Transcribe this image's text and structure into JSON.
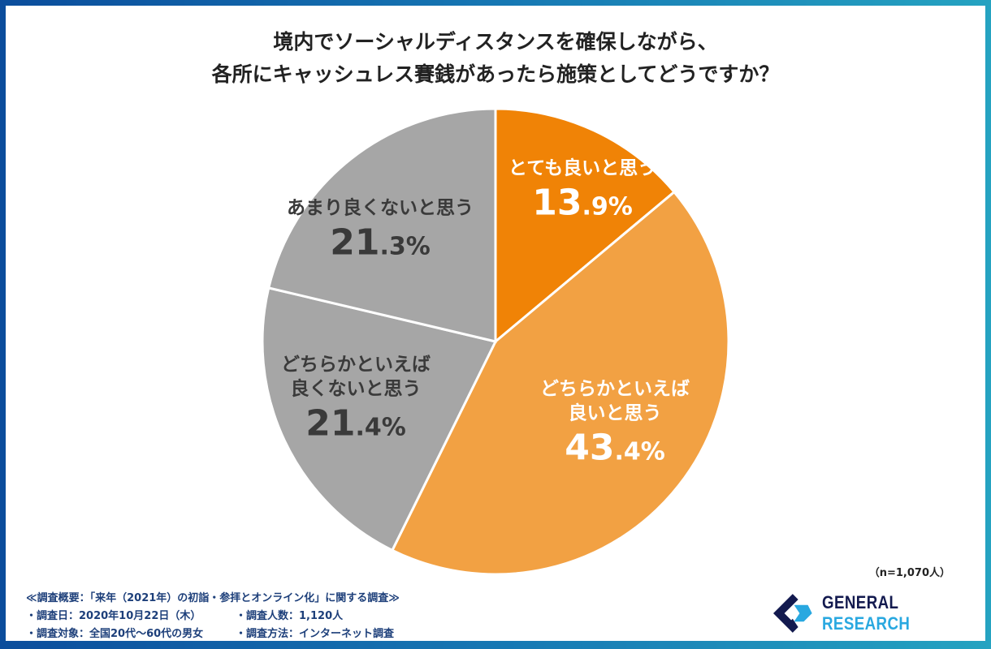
{
  "chart_data": {
    "type": "pie",
    "title": [
      "境内でソーシャルディスタンスを確保しながら、",
      "各所にキャッシュレス賽銭があったら施策としてどうですか？"
    ],
    "start": "top",
    "direction": "clockwise",
    "slices": [
      {
        "label": "とても良いと思う",
        "label_lines": [
          "とても良いと思う"
        ],
        "value": 13.9,
        "pct_int": "13",
        "pct_dec": ".9%",
        "color": "#f08306"
      },
      {
        "label": "どちらかといえば良いと思う",
        "label_lines": [
          "どちらかといえば",
          "良いと思う"
        ],
        "value": 43.4,
        "pct_int": "43",
        "pct_dec": ".4%",
        "color": "#f2a143"
      },
      {
        "label": "どちらかといえば良くないと思う",
        "label_lines": [
          "どちらかといえば",
          "良くないと思う"
        ],
        "value": 21.4,
        "pct_int": "21",
        "pct_dec": ".4%",
        "color": "#a6a6a6"
      },
      {
        "label": "あまり良くないと思う",
        "label_lines": [
          "あまり良くないと思う"
        ],
        "value": 21.3,
        "pct_int": "21",
        "pct_dec": ".3%",
        "color": "#a6a6a6"
      }
    ],
    "sample_note": "（n=1,070人）"
  },
  "footer": {
    "heading": "≪調査概要：「来年（2021年）の初詣・参拝とオンライン化」に関する調査≫",
    "items": [
      "・調査日：2020年10月22日（木）",
      "・調査人数：1,120人",
      "・調査対象：全国20代〜60代の男女",
      "・調査方法：インターネット調査"
    ]
  },
  "logo": {
    "part1": "GENERAL",
    "part2": "RESEARCH"
  }
}
